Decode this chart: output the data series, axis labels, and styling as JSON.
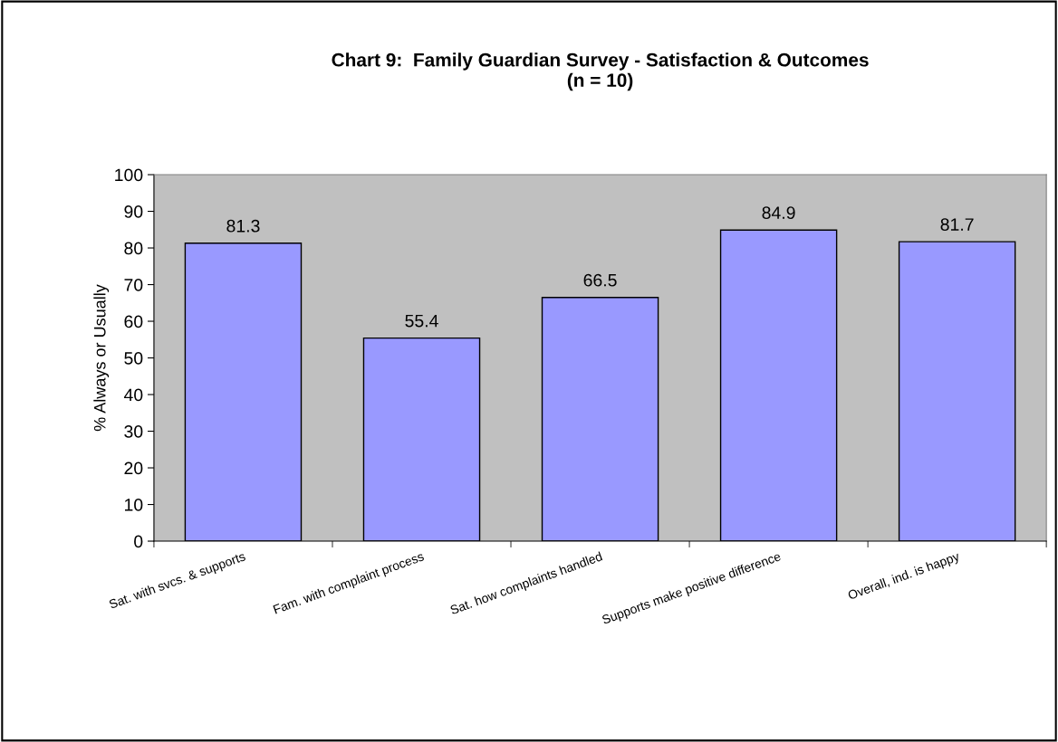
{
  "chart_data": {
    "type": "bar",
    "title": "Chart 9:  Family Guardian Survey - Satisfaction & Outcomes\n(n = 10)",
    "ylabel": "% Always or Usually",
    "categories": [
      "Sat. with svcs. & supports",
      "Fam. with complaint process",
      "Sat. how complaints handled",
      "Supports make positive difference",
      "Overall, ind. is happy"
    ],
    "values": [
      81.3,
      55.4,
      66.5,
      84.9,
      81.7
    ],
    "color": "#9999ff",
    "ylim": [
      0,
      100
    ],
    "yticks": [
      0,
      10,
      20,
      30,
      40,
      50,
      60,
      70,
      80,
      90,
      100
    ],
    "data_labels": true,
    "grid": false,
    "legend": false
  }
}
